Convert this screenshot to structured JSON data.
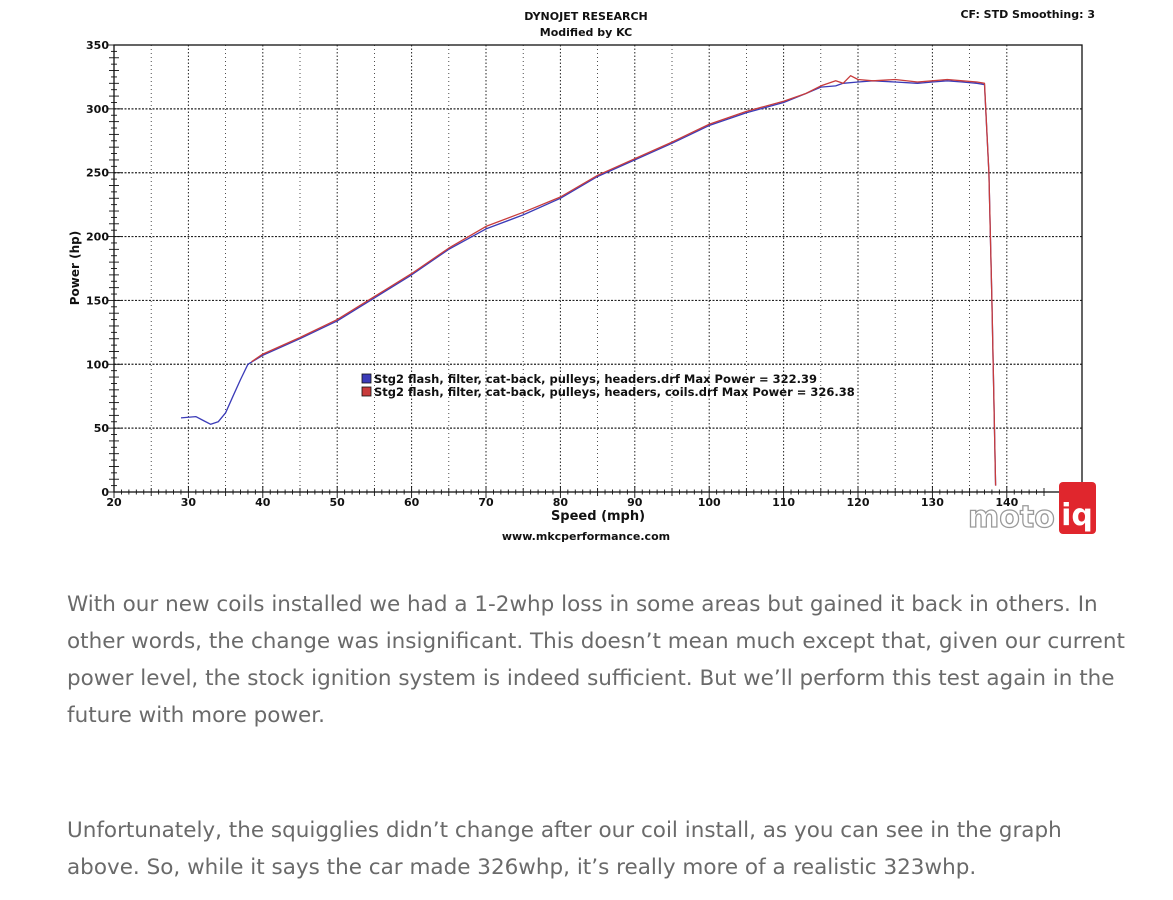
{
  "chart_data": {
    "type": "line",
    "title": "DYNOJET RESEARCH",
    "subtitle": "Modified by KC",
    "top_right": "CF: STD  Smoothing: 3",
    "xlabel": "Speed (mph)",
    "ylabel": "Power (hp)",
    "footer": "www.mkcperformance.com",
    "xlim": [
      20,
      145
    ],
    "ylim": [
      0,
      350
    ],
    "xticks": [
      20,
      30,
      40,
      50,
      60,
      70,
      80,
      90,
      100,
      110,
      120,
      130,
      140
    ],
    "yticks": [
      0,
      50,
      100,
      150,
      200,
      250,
      300,
      350
    ],
    "grid": true,
    "legend_position": "center",
    "series": [
      {
        "name": "Stg2 flash, filter, cat-back, pulleys, headers.drf Max Power = 322.39",
        "color": "#3b3bb8",
        "x": [
          29,
          31,
          32,
          33,
          34,
          35,
          36,
          37,
          38,
          40,
          45,
          50,
          55,
          60,
          65,
          70,
          75,
          80,
          85,
          90,
          95,
          100,
          105,
          110,
          113,
          115,
          117,
          118,
          120,
          122,
          125,
          128,
          130,
          132,
          134,
          136,
          137,
          137.6,
          138,
          138.3,
          138.5
        ],
        "values": [
          58,
          59,
          56,
          53,
          55,
          62,
          75,
          88,
          100,
          107,
          120,
          134,
          152,
          170,
          190,
          206,
          217,
          230,
          247,
          260,
          273,
          287,
          297,
          305,
          312,
          317,
          318,
          320,
          321,
          322,
          321,
          320,
          321,
          322,
          321,
          320,
          319,
          250,
          150,
          60,
          5
        ]
      },
      {
        "name": "Stg2 flash, filter, cat-back, pulleys, headers, coils.drf Max Power = 326.38",
        "color": "#c83c3c",
        "x": [
          38.5,
          40,
          45,
          50,
          55,
          60,
          65,
          70,
          75,
          80,
          85,
          90,
          95,
          100,
          105,
          110,
          113,
          115,
          117,
          118,
          119,
          120,
          122,
          125,
          128,
          130,
          132,
          134,
          136,
          137,
          137.6,
          138,
          138.3,
          138.5
        ],
        "values": [
          102,
          108,
          121,
          135,
          153,
          171,
          191,
          208,
          219,
          231,
          248,
          261,
          274,
          288,
          298,
          306,
          312,
          318,
          322,
          320,
          326,
          323,
          322,
          323,
          321,
          322,
          323,
          322,
          321,
          320,
          250,
          150,
          60,
          5
        ]
      }
    ]
  },
  "watermark": {
    "part1": "moto",
    "part2": "iq"
  },
  "article": {
    "paragraph_1": "With our new coils installed we had a 1-2whp loss in some areas but gained it back in others.  In other words, the change was insignificant.  This doesn’t mean much except that, given our current power level, the stock ignition system is indeed sufficient.  But we’ll perform this test again in the future with more power.",
    "paragraph_2": "Unfortunately, the squigglies didn’t change after our coil install, as you can see in the graph above.  So, while it says the car made 326whp, it’s really more of a realistic 323whp."
  }
}
